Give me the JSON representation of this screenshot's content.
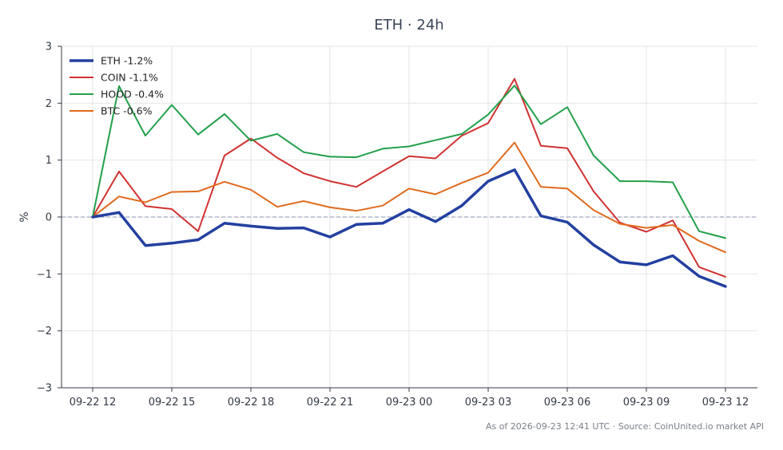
{
  "chart_data": {
    "type": "line",
    "title": "ETH · 24h",
    "ylabel": "%",
    "ylim": [
      -3,
      3
    ],
    "yticks": [
      3,
      2,
      1,
      0,
      -1,
      -2,
      -3
    ],
    "ytick_labels": [
      "3",
      "2",
      "1",
      "0",
      "−1",
      "−2",
      "−3"
    ],
    "xticks": [
      {
        "i": 0,
        "label": "09-22 12"
      },
      {
        "i": 3,
        "label": "09-22 15"
      },
      {
        "i": 6,
        "label": "09-22 18"
      },
      {
        "i": 9,
        "label": "09-22 21"
      },
      {
        "i": 12,
        "label": "09-23 00"
      },
      {
        "i": 15,
        "label": "09-23 03"
      },
      {
        "i": 18,
        "label": "09-23 06"
      },
      {
        "i": 21,
        "label": "09-23 09"
      },
      {
        "i": 24,
        "label": "09-23 12"
      }
    ],
    "x_count": 25,
    "grid": true,
    "zero_line": true,
    "legend_position": "top-left",
    "series": [
      {
        "name": "ETH -1.2%",
        "color": "#2340a0",
        "width": 3.5,
        "values": [
          0,
          0.08,
          -0.5,
          -0.46,
          -0.4,
          -0.11,
          -0.16,
          -0.2,
          -0.19,
          -0.35,
          -0.13,
          -0.11,
          0.13,
          -0.08,
          0.2,
          0.63,
          0.83,
          0.02,
          -0.09,
          -0.49,
          -0.79,
          -0.84,
          -0.68,
          -1.04,
          -1.22
        ]
      },
      {
        "name": "COIN -1.1%",
        "color": "#d13232",
        "width": 2,
        "values": [
          0,
          0.8,
          0.19,
          0.14,
          -0.25,
          1.08,
          1.38,
          1.04,
          0.77,
          0.63,
          0.53,
          0.8,
          1.07,
          1.03,
          1.43,
          1.65,
          2.43,
          1.25,
          1.21,
          0.45,
          -0.1,
          -0.26,
          -0.06,
          -0.88,
          -1.05
        ]
      },
      {
        "name": "HOOD -0.4%",
        "color": "#22a04a",
        "width": 2,
        "values": [
          0,
          2.3,
          1.43,
          1.97,
          1.45,
          1.81,
          1.34,
          1.46,
          1.14,
          1.06,
          1.05,
          1.2,
          1.24,
          1.35,
          1.46,
          1.8,
          2.31,
          1.63,
          1.93,
          1.08,
          0.63,
          0.63,
          0.61,
          -0.25,
          -0.37
        ]
      },
      {
        "name": "BTC -0.6%",
        "color": "#e06a1e",
        "width": 2,
        "values": [
          0,
          0.36,
          0.26,
          0.44,
          0.45,
          0.62,
          0.48,
          0.18,
          0.28,
          0.17,
          0.11,
          0.2,
          0.5,
          0.4,
          0.6,
          0.78,
          1.31,
          0.53,
          0.5,
          0.12,
          -0.12,
          -0.19,
          -0.14,
          -0.42,
          -0.62
        ]
      }
    ],
    "footnote": "As of 2026-09-23 12:41 UTC · Source: CoinUnited.io market API"
  }
}
